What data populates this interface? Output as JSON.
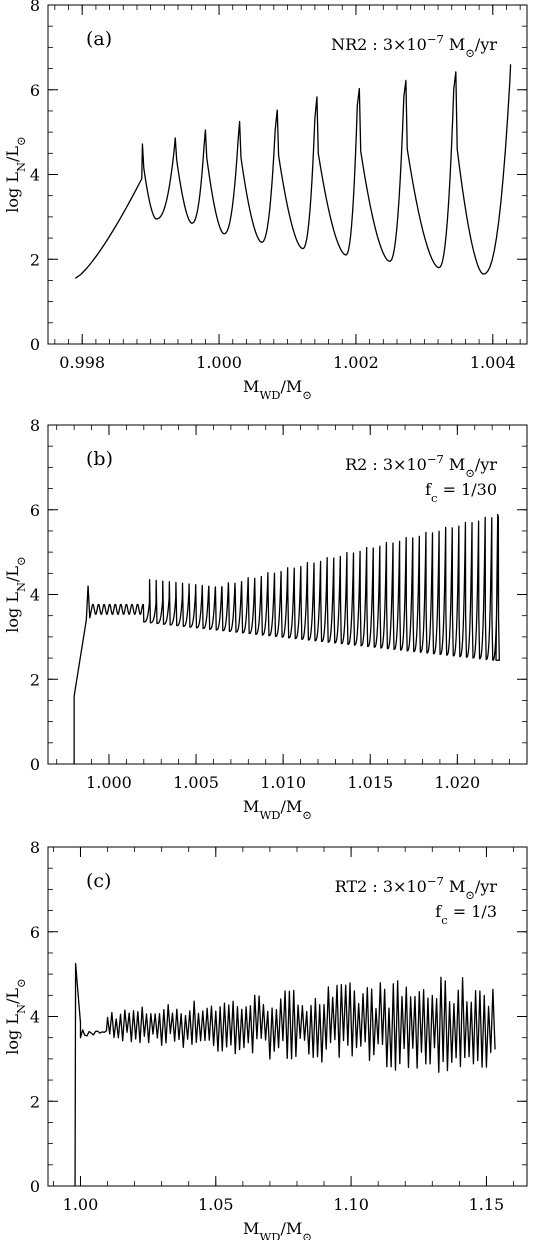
{
  "colors": {
    "ink": "#000000",
    "background": "#ffffff"
  },
  "chart_data": [
    {
      "type": "line",
      "panel_label": "(a)",
      "annotation_lines": [
        {
          "parts": [
            {
              "t": "NR2 : 3×10"
            },
            {
              "t": "−7",
              "sup": true
            },
            {
              "t": " M"
            },
            {
              "t": "⊙",
              "sub": true
            },
            {
              "t": "/yr"
            }
          ]
        }
      ],
      "ylabel": {
        "parts": [
          {
            "t": "log L"
          },
          {
            "t": "N",
            "sub": true
          },
          {
            "t": "/L"
          },
          {
            "t": "⊙",
            "sub": true
          }
        ]
      },
      "xlabel": {
        "parts": [
          {
            "t": "M"
          },
          {
            "t": "WD",
            "sub": true
          },
          {
            "t": "/M"
          },
          {
            "t": "⊙",
            "sub": true
          }
        ]
      },
      "xlim": [
        0.9975,
        1.0045
      ],
      "ylim": [
        0,
        8
      ],
      "x_ticks": [
        0.998,
        1.0,
        1.002,
        1.004
      ],
      "x_tick_labels": [
        "0.998",
        "1.000",
        "1.002",
        "1.004"
      ],
      "x_minor_step": 0.0002,
      "y_ticks": [
        0,
        2,
        4,
        6,
        8
      ],
      "y_tick_labels": [
        "0",
        "2",
        "4",
        "6",
        "8"
      ],
      "y_minor_step": 0.5,
      "series": [
        {
          "pattern": "flashes",
          "start": [
            0.9979,
            1.55
          ],
          "rise_to": [
            0.99887,
            3.9
          ],
          "flashes": [
            {
              "x": 0.99888,
              "peak": 4.72,
              "post": 4.15,
              "min": 2.95,
              "min_dx": 0.00018,
              "end_x": 0.99934
            },
            {
              "x": 0.99936,
              "peak": 4.86,
              "post": 4.35,
              "min": 2.85,
              "min_dx": 0.00022,
              "end_x": 0.99978
            },
            {
              "x": 0.9998,
              "peak": 5.05,
              "post": 4.4,
              "min": 2.6,
              "min_dx": 0.00025,
              "end_x": 1.00028
            },
            {
              "x": 1.0003,
              "peak": 5.25,
              "post": 4.4,
              "min": 2.4,
              "min_dx": 0.0003,
              "end_x": 1.00082
            },
            {
              "x": 1.00085,
              "peak": 5.52,
              "post": 4.45,
              "min": 2.25,
              "min_dx": 0.00035,
              "end_x": 1.0014
            },
            {
              "x": 1.00143,
              "peak": 5.83,
              "post": 4.5,
              "min": 2.1,
              "min_dx": 0.0004,
              "end_x": 1.00202
            },
            {
              "x": 1.00205,
              "peak": 6.03,
              "post": 4.55,
              "min": 1.95,
              "min_dx": 0.00042,
              "end_x": 1.0027
            },
            {
              "x": 1.00273,
              "peak": 6.22,
              "post": 4.6,
              "min": 1.8,
              "min_dx": 0.00046,
              "end_x": 1.00343
            },
            {
              "x": 1.00346,
              "peak": 6.42,
              "post": 4.6,
              "min": 1.65,
              "min_dx": 0.00038,
              "end_x": 1.00425
            }
          ],
          "final": [
            1.00426,
            6.6
          ]
        }
      ]
    },
    {
      "type": "line",
      "panel_label": "(b)",
      "annotation_lines": [
        {
          "parts": [
            {
              "t": "R2 : 3×10"
            },
            {
              "t": "−7",
              "sup": true
            },
            {
              "t": " M"
            },
            {
              "t": "⊙",
              "sub": true
            },
            {
              "t": "/yr"
            }
          ]
        },
        {
          "parts": [
            {
              "t": "f"
            },
            {
              "t": "c",
              "sub": true
            },
            {
              "t": " = 1/30"
            }
          ]
        }
      ],
      "ylabel": {
        "parts": [
          {
            "t": "log L"
          },
          {
            "t": "N",
            "sub": true
          },
          {
            "t": "/L"
          },
          {
            "t": "⊙",
            "sub": true
          }
        ]
      },
      "xlabel": {
        "parts": [
          {
            "t": "M"
          },
          {
            "t": "WD",
            "sub": true
          },
          {
            "t": "/M"
          },
          {
            "t": "⊙",
            "sub": true
          }
        ]
      },
      "xlim": [
        0.9965,
        1.024
      ],
      "ylim": [
        0,
        8
      ],
      "x_ticks": [
        1.0,
        1.005,
        1.01,
        1.015,
        1.02
      ],
      "x_tick_labels": [
        "1.000",
        "1.005",
        "1.010",
        "1.015",
        "1.020"
      ],
      "x_minor_step": 0.001,
      "y_ticks": [
        0,
        2,
        4,
        6,
        8
      ],
      "y_tick_labels": [
        "0",
        "2",
        "4",
        "6",
        "8"
      ],
      "y_minor_step": 0.5,
      "series": [
        {
          "pattern": "oscillation",
          "start_drop": [
            0.998,
            0.0
          ],
          "start": [
            0.998,
            1.6
          ],
          "ramp_to": [
            0.9987,
            3.4
          ],
          "first_peak": [
            0.9988,
            4.2
          ],
          "damped": {
            "x0": 0.999,
            "x1": 1.002,
            "center": 3.65,
            "amp": 0.12,
            "period": 0.00032
          },
          "cycles": {
            "x0": 1.002,
            "x1": 1.0223,
            "period": 0.000378,
            "peak_start": 3.75,
            "peak_end": 5.85,
            "trough_start": 3.35,
            "trough_end": 2.45
          },
          "final": [
            1.02232,
            5.9
          ]
        }
      ]
    },
    {
      "type": "line",
      "panel_label": "(c)",
      "annotation_lines": [
        {
          "parts": [
            {
              "t": "RT2 : 3×10"
            },
            {
              "t": "−7",
              "sup": true
            },
            {
              "t": " M"
            },
            {
              "t": "⊙",
              "sub": true
            },
            {
              "t": "/yr"
            }
          ]
        },
        {
          "parts": [
            {
              "t": "f"
            },
            {
              "t": "c",
              "sub": true
            },
            {
              "t": " = 1/3"
            }
          ]
        }
      ],
      "ylabel": {
        "parts": [
          {
            "t": "log L"
          },
          {
            "t": "N",
            "sub": true
          },
          {
            "t": "/L"
          },
          {
            "t": "⊙",
            "sub": true
          }
        ]
      },
      "xlabel": {
        "parts": [
          {
            "t": "M"
          },
          {
            "t": "WD",
            "sub": true
          },
          {
            "t": "/M"
          },
          {
            "t": "⊙",
            "sub": true
          }
        ]
      },
      "xlim": [
        0.988,
        1.165
      ],
      "ylim": [
        0,
        8
      ],
      "x_ticks": [
        1.0,
        1.05,
        1.1,
        1.15
      ],
      "x_tick_labels": [
        "1.00",
        "1.05",
        "1.10",
        "1.15"
      ],
      "x_minor_step": 0.01,
      "y_ticks": [
        0,
        2,
        4,
        6,
        8
      ],
      "y_tick_labels": [
        "0",
        "2",
        "4",
        "6",
        "8"
      ],
      "y_minor_step": 0.5,
      "series": [
        {
          "pattern": "noisy",
          "start_drop": [
            0.998,
            0.0
          ],
          "spike": [
            0.9982,
            5.25
          ],
          "settle": [
            1.0,
            3.85
          ],
          "calm_until": 1.01,
          "calm_level": 3.6,
          "x1": 1.1535,
          "center": 3.8,
          "amp_start": 0.35,
          "amp_mid": 1.0,
          "amp_end": 1.2,
          "step": 0.0008
        }
      ]
    }
  ]
}
